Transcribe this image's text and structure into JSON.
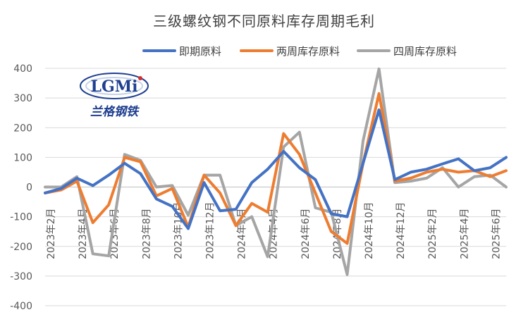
{
  "chart_data": {
    "type": "line",
    "title": "三级螺纹钢不同原料库存周期毛利",
    "ylim": [
      -400,
      400
    ],
    "yticks": [
      -400,
      -300,
      -200,
      -100,
      0,
      100,
      200,
      300,
      400
    ],
    "x_labels": [
      "2023年2月",
      "2023年4月",
      "2023年6月",
      "2023年8月",
      "2023年10月",
      "2023年12月",
      "2024年2月",
      "2024年4月",
      "2024年6月",
      "2024年8月",
      "2024年10月",
      "2024年12月",
      "2025年2月",
      "2025年4月",
      "2025年6月"
    ],
    "grid": true,
    "legend_position": "top",
    "series": [
      {
        "name": "即期原料",
        "color": "#4472c4",
        "values": [
          -20,
          -5,
          30,
          5,
          40,
          80,
          45,
          -40,
          -65,
          -140,
          15,
          -80,
          -75,
          15,
          60,
          120,
          65,
          25,
          -90,
          -100,
          80,
          260,
          25,
          50,
          60,
          78,
          95,
          55,
          65,
          100
        ]
      },
      {
        "name": "两周库存原料",
        "color": "#ed7d31",
        "values": [
          -20,
          -10,
          20,
          -120,
          -60,
          100,
          85,
          -30,
          -5,
          -135,
          40,
          -20,
          -130,
          -55,
          -85,
          180,
          110,
          -20,
          -150,
          -190,
          80,
          315,
          20,
          30,
          50,
          60,
          50,
          55,
          35,
          55
        ]
      },
      {
        "name": "四周库存原料",
        "color": "#a5a5a5",
        "values": [
          0,
          0,
          35,
          -225,
          -232,
          110,
          90,
          0,
          5,
          -95,
          40,
          40,
          -130,
          -100,
          -235,
          135,
          185,
          -70,
          -85,
          -295,
          155,
          398,
          15,
          20,
          30,
          65,
          0,
          35,
          40,
          0
        ]
      }
    ]
  },
  "logo": {
    "text": "LGMi",
    "subtext": "兰格钢铁"
  }
}
